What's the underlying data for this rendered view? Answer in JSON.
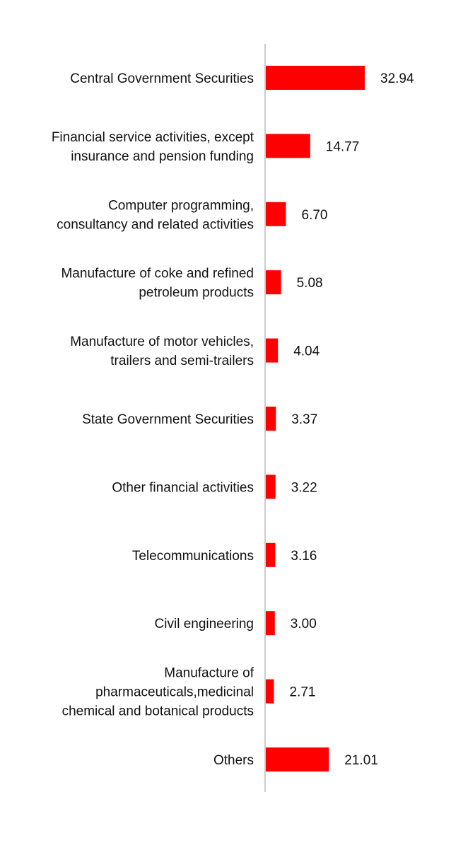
{
  "chart_data": {
    "type": "bar",
    "orientation": "horizontal",
    "categories": [
      [
        "Central Government Securities"
      ],
      [
        "Financial service activities, except",
        "insurance and pension funding"
      ],
      [
        "Computer programming,",
        "consultancy and related activities"
      ],
      [
        "Manufacture of coke and refined",
        "petroleum products"
      ],
      [
        "Manufacture of motor vehicles,",
        "trailers and semi-trailers"
      ],
      [
        "State Government Securities"
      ],
      [
        "Other financial activities"
      ],
      [
        "Telecommunications"
      ],
      [
        "Civil engineering"
      ],
      [
        "Manufacture of",
        "pharmaceuticals,medicinal",
        "chemical and botanical products"
      ],
      [
        "Others"
      ]
    ],
    "values": [
      32.94,
      14.77,
      6.7,
      5.08,
      4.04,
      3.37,
      3.22,
      3.16,
      3.0,
      2.71,
      21.01
    ],
    "value_labels": [
      "32.94",
      "14.77",
      "6.70",
      "5.08",
      "4.04",
      "3.37",
      "3.22",
      "3.16",
      "3.00",
      "2.71",
      "21.01"
    ],
    "xlim": [
      0,
      32.94
    ],
    "bar_color": "#ff0000",
    "axis_color": "#cccccc",
    "grid": false,
    "legend": "none"
  }
}
